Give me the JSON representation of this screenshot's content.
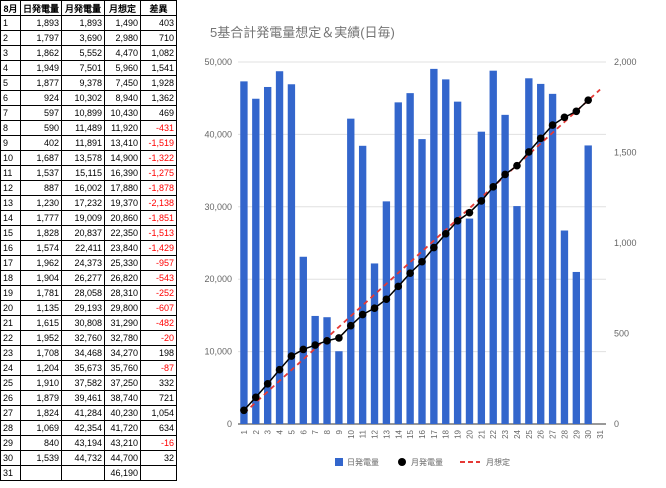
{
  "table": {
    "headers": [
      "8月",
      "日発電量",
      "月発電量",
      "月想定",
      "差異"
    ],
    "rows": [
      [
        "1",
        "1,893",
        "1,893",
        "1,490",
        "403"
      ],
      [
        "2",
        "1,797",
        "3,690",
        "2,980",
        "710"
      ],
      [
        "3",
        "1,862",
        "5,552",
        "4,470",
        "1,082"
      ],
      [
        "4",
        "1,949",
        "7,501",
        "5,960",
        "1,541"
      ],
      [
        "5",
        "1,877",
        "9,378",
        "7,450",
        "1,928"
      ],
      [
        "6",
        "924",
        "10,302",
        "8,940",
        "1,362"
      ],
      [
        "7",
        "597",
        "10,899",
        "10,430",
        "469"
      ],
      [
        "8",
        "590",
        "11,489",
        "11,920",
        "-431"
      ],
      [
        "9",
        "402",
        "11,891",
        "13,410",
        "-1,519"
      ],
      [
        "10",
        "1,687",
        "13,578",
        "14,900",
        "-1,322"
      ],
      [
        "11",
        "1,537",
        "15,115",
        "16,390",
        "-1,275"
      ],
      [
        "12",
        "887",
        "16,002",
        "17,880",
        "-1,878"
      ],
      [
        "13",
        "1,230",
        "17,232",
        "19,370",
        "-2,138"
      ],
      [
        "14",
        "1,777",
        "19,009",
        "20,860",
        "-1,851"
      ],
      [
        "15",
        "1,828",
        "20,837",
        "22,350",
        "-1,513"
      ],
      [
        "16",
        "1,574",
        "22,411",
        "23,840",
        "-1,429"
      ],
      [
        "17",
        "1,962",
        "24,373",
        "25,330",
        "-957"
      ],
      [
        "18",
        "1,904",
        "26,277",
        "26,820",
        "-543"
      ],
      [
        "19",
        "1,781",
        "28,058",
        "28,310",
        "-252"
      ],
      [
        "20",
        "1,135",
        "29,193",
        "29,800",
        "-607"
      ],
      [
        "21",
        "1,615",
        "30,808",
        "31,290",
        "-482"
      ],
      [
        "22",
        "1,952",
        "32,760",
        "32,780",
        "-20"
      ],
      [
        "23",
        "1,708",
        "34,468",
        "34,270",
        "198"
      ],
      [
        "24",
        "1,204",
        "35,673",
        "35,760",
        "-87"
      ],
      [
        "25",
        "1,910",
        "37,582",
        "37,250",
        "332"
      ],
      [
        "26",
        "1,879",
        "39,461",
        "38,740",
        "721"
      ],
      [
        "27",
        "1,824",
        "41,284",
        "40,230",
        "1,054"
      ],
      [
        "28",
        "1,069",
        "42,354",
        "41,720",
        "634"
      ],
      [
        "29",
        "840",
        "43,194",
        "43,210",
        "-16"
      ],
      [
        "30",
        "1,539",
        "44,732",
        "44,700",
        "32"
      ],
      [
        "31",
        "",
        "",
        "46,190",
        ""
      ]
    ]
  },
  "chart_data": {
    "type": "bar",
    "title": "5基合計発電量想定＆実績(日毎)",
    "categories": [
      "1",
      "2",
      "3",
      "4",
      "5",
      "6",
      "7",
      "8",
      "9",
      "10",
      "11",
      "12",
      "13",
      "14",
      "15",
      "16",
      "17",
      "18",
      "19",
      "20",
      "21",
      "22",
      "23",
      "24",
      "25",
      "26",
      "27",
      "28",
      "29",
      "30",
      "31"
    ],
    "y_left_ticks": [
      "0",
      "10,000",
      "20,000",
      "30,000",
      "40,000",
      "50,000"
    ],
    "y_right_ticks": [
      "0",
      "500",
      "1,000",
      "1,500",
      "2,000"
    ],
    "ylim_left": [
      0,
      50000
    ],
    "ylim_right": [
      0,
      2000
    ],
    "series": [
      {
        "name": "日発電量",
        "type": "bar",
        "axis": "right",
        "color": "#3366cc",
        "values": [
          1893,
          1797,
          1862,
          1949,
          1877,
          924,
          597,
          590,
          402,
          1687,
          1537,
          887,
          1230,
          1777,
          1828,
          1574,
          1962,
          1904,
          1781,
          1135,
          1615,
          1952,
          1708,
          1204,
          1910,
          1879,
          1824,
          1069,
          840,
          1539,
          null
        ]
      },
      {
        "name": "月発電量",
        "type": "line-markers",
        "axis": "left",
        "color": "#000000",
        "values": [
          1893,
          3690,
          5552,
          7501,
          9378,
          10302,
          10899,
          11489,
          11891,
          13578,
          15115,
          16002,
          17232,
          19009,
          20837,
          22411,
          24373,
          26277,
          28058,
          29193,
          30808,
          32760,
          34468,
          35673,
          37582,
          39461,
          41284,
          42354,
          43194,
          44732,
          null
        ]
      },
      {
        "name": "月想定",
        "type": "dashed-line",
        "axis": "left",
        "color": "#e53935",
        "values": [
          1490,
          2980,
          4470,
          5960,
          7450,
          8940,
          10430,
          11920,
          13410,
          14900,
          16390,
          17880,
          19370,
          20860,
          22350,
          23840,
          25330,
          26820,
          28310,
          29800,
          31290,
          32780,
          34270,
          35760,
          37250,
          38740,
          40230,
          41720,
          43210,
          44700,
          46190
        ]
      }
    ],
    "gridlines": true,
    "legend_position": "bottom"
  }
}
